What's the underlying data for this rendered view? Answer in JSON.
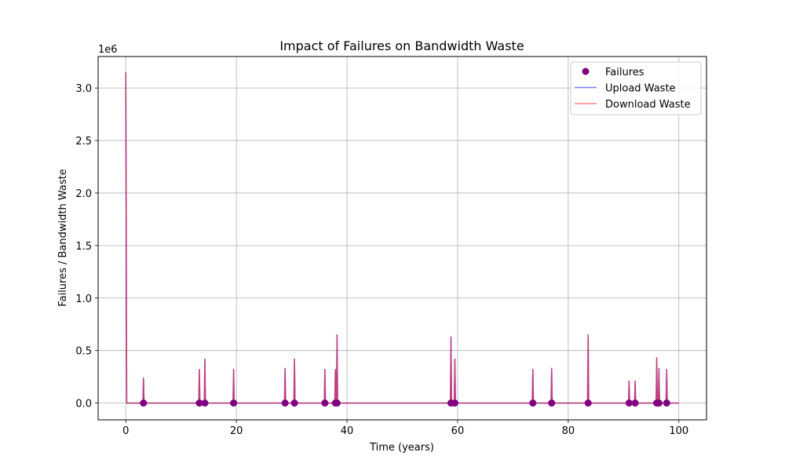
{
  "chart_data": {
    "type": "line",
    "title": "Impact of Failures on Bandwidth Waste",
    "xlabel": "Time (years)",
    "ylabel": "Failures / Bandwidth Waste",
    "y_offset_label": "1e6",
    "xlim": [
      -5,
      105
    ],
    "ylim": [
      -0.16,
      3.3
    ],
    "y_unit_multiplier": 1000000,
    "x_ticks": [
      0,
      20,
      40,
      60,
      80,
      100
    ],
    "x_tick_labels": [
      "0",
      "20",
      "40",
      "60",
      "80",
      "100"
    ],
    "y_ticks": [
      0.0,
      0.5,
      1.0,
      1.5,
      2.0,
      2.5,
      3.0
    ],
    "y_tick_labels": [
      "0.0",
      "0.5",
      "1.0",
      "1.5",
      "2.0",
      "2.5",
      "3.0"
    ],
    "grid": true,
    "legend_position": "top-right",
    "x_end": 100,
    "series": [
      {
        "name": "Failures",
        "kind": "scatter",
        "color": "#800080",
        "x": [
          3.2,
          13.3,
          14.3,
          19.5,
          28.8,
          30.5,
          36.0,
          37.9,
          38.2,
          58.8,
          59.5,
          73.6,
          77.0,
          83.6,
          91.0,
          92.1,
          96.0,
          96.4,
          97.8
        ],
        "y": [
          0,
          0,
          0,
          0,
          0,
          0,
          0,
          0,
          0,
          0,
          0,
          0,
          0,
          0,
          0,
          0,
          0,
          0,
          0
        ]
      },
      {
        "name": "Upload Waste",
        "kind": "line",
        "color": "#0000ff",
        "spike_x": [
          0.0,
          3.2,
          13.3,
          14.3,
          19.5,
          28.8,
          30.5,
          36.0,
          37.9,
          38.2,
          58.8,
          59.5,
          73.6,
          77.0,
          83.6,
          91.0,
          92.1,
          96.0,
          96.4,
          97.8
        ],
        "spike_y": [
          3.15,
          0.24,
          0.32,
          0.42,
          0.32,
          0.33,
          0.42,
          0.32,
          0.32,
          0.65,
          0.63,
          0.42,
          0.32,
          0.33,
          0.65,
          0.21,
          0.21,
          0.43,
          0.33,
          0.32
        ]
      },
      {
        "name": "Download Waste",
        "kind": "line",
        "color": "#ff0000",
        "spike_x": [
          0.0,
          3.2,
          13.3,
          14.3,
          19.5,
          28.8,
          30.5,
          36.0,
          37.9,
          38.2,
          58.8,
          59.5,
          73.6,
          77.0,
          83.6,
          91.0,
          92.1,
          96.0,
          96.4,
          97.8
        ],
        "spike_y": [
          3.15,
          0.24,
          0.32,
          0.42,
          0.32,
          0.33,
          0.42,
          0.32,
          0.32,
          0.65,
          0.63,
          0.42,
          0.32,
          0.33,
          0.65,
          0.21,
          0.21,
          0.43,
          0.33,
          0.32
        ]
      }
    ]
  }
}
